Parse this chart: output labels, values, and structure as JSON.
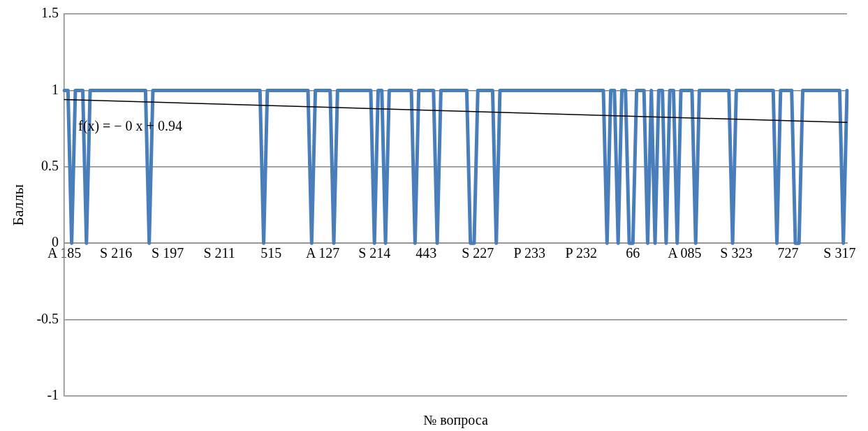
{
  "chart_data": {
    "type": "line",
    "xlabel": "№ вопроса",
    "ylabel": "Баллы",
    "categories": [
      "A 185",
      null,
      null,
      null,
      null,
      null,
      null,
      null,
      null,
      null,
      null,
      null,
      null,
      null,
      "S 216",
      null,
      null,
      null,
      null,
      null,
      null,
      null,
      null,
      null,
      null,
      null,
      null,
      null,
      "S 197",
      null,
      null,
      null,
      null,
      null,
      null,
      null,
      null,
      null,
      null,
      null,
      null,
      null,
      "S 211",
      null,
      null,
      null,
      null,
      null,
      null,
      null,
      null,
      null,
      null,
      null,
      null,
      null,
      "515",
      null,
      null,
      null,
      null,
      null,
      null,
      null,
      null,
      null,
      null,
      null,
      null,
      null,
      "A 127",
      null,
      null,
      null,
      null,
      null,
      null,
      null,
      null,
      null,
      null,
      null,
      null,
      null,
      "S 214",
      null,
      null,
      null,
      null,
      null,
      null,
      null,
      null,
      null,
      null,
      null,
      null,
      null,
      "443",
      null,
      null,
      null,
      null,
      null,
      null,
      null,
      null,
      null,
      null,
      null,
      null,
      null,
      "S 227",
      null,
      null,
      null,
      null,
      null,
      null,
      null,
      null,
      null,
      null,
      null,
      null,
      null,
      "P 233",
      null,
      null,
      null,
      null,
      null,
      null,
      null,
      null,
      null,
      null,
      null,
      null,
      null,
      "P 232",
      null,
      null,
      null,
      null,
      null,
      null,
      null,
      null,
      null,
      null,
      null,
      null,
      null,
      "66",
      null,
      null,
      null,
      null,
      null,
      null,
      null,
      null,
      null,
      null,
      null,
      null,
      null,
      "A 085",
      null,
      null,
      null,
      null,
      null,
      null,
      null,
      null,
      null,
      null,
      null,
      null,
      null,
      "S 323",
      null,
      null,
      null,
      null,
      null,
      null,
      null,
      null,
      null,
      null,
      null,
      null,
      null,
      "727",
      null,
      null,
      null,
      null,
      null,
      null,
      null,
      null,
      null,
      null,
      null,
      null,
      null,
      "S 317",
      null,
      null
    ],
    "series": [
      {
        "color": "#4a7ebb",
        "values": [
          1,
          1,
          0,
          1,
          1,
          1,
          0,
          1,
          1,
          1,
          1,
          1,
          1,
          1,
          1,
          1,
          1,
          1,
          1,
          1,
          1,
          1,
          1,
          0,
          1,
          1,
          1,
          1,
          1,
          1,
          1,
          1,
          1,
          1,
          1,
          1,
          1,
          1,
          1,
          1,
          1,
          1,
          1,
          1,
          1,
          1,
          1,
          1,
          1,
          1,
          1,
          1,
          1,
          1,
          0,
          1,
          1,
          1,
          1,
          1,
          1,
          1,
          1,
          1,
          1,
          1,
          1,
          0,
          1,
          1,
          1,
          1,
          1,
          0,
          1,
          1,
          1,
          1,
          1,
          1,
          1,
          1,
          1,
          1,
          0,
          1,
          1,
          0,
          1,
          1,
          1,
          1,
          1,
          1,
          1,
          0,
          1,
          1,
          1,
          1,
          1,
          0,
          1,
          1,
          1,
          1,
          1,
          1,
          1,
          1,
          0,
          0,
          1,
          1,
          1,
          1,
          1,
          0,
          1,
          1,
          1,
          1,
          1,
          1,
          1,
          1,
          1,
          1,
          1,
          1,
          1,
          1,
          1,
          1,
          1,
          1,
          1,
          1,
          1,
          1,
          1,
          1,
          1,
          1,
          1,
          1,
          1,
          0,
          1,
          1,
          0,
          1,
          1,
          0,
          0,
          1,
          1,
          1,
          0,
          1,
          0,
          1,
          1,
          0,
          1,
          1,
          0,
          1,
          1,
          1,
          1,
          0,
          1,
          1,
          1,
          1,
          1,
          1,
          1,
          1,
          1,
          0,
          1,
          1,
          1,
          1,
          1,
          1,
          1,
          1,
          1,
          1,
          1,
          0,
          1,
          1,
          1,
          1,
          0,
          0,
          1,
          1,
          1,
          1,
          1,
          1,
          1,
          1,
          1,
          1,
          1,
          0,
          1
        ]
      },
      {
        "type": "line",
        "color": "#000000",
        "values": [
          0.94,
          null,
          null,
          null,
          null,
          null,
          null,
          null,
          null,
          null,
          null,
          null,
          null,
          null,
          null,
          null,
          null,
          null,
          null,
          null,
          null,
          null,
          null,
          null,
          null,
          null,
          null,
          null,
          null,
          null,
          null,
          null,
          null,
          null,
          null,
          null,
          null,
          null,
          null,
          null,
          null,
          null,
          null,
          null,
          null,
          null,
          null,
          null,
          null,
          null,
          null,
          null,
          null,
          null,
          null,
          null,
          null,
          null,
          null,
          null,
          null,
          null,
          null,
          null,
          null,
          null,
          null,
          null,
          null,
          null,
          null,
          null,
          null,
          null,
          null,
          null,
          null,
          null,
          null,
          null,
          null,
          null,
          null,
          null,
          null,
          null,
          null,
          null,
          null,
          null,
          null,
          null,
          null,
          null,
          null,
          null,
          null,
          null,
          null,
          null,
          null,
          null,
          null,
          null,
          null,
          null,
          null,
          null,
          null,
          null,
          null,
          null,
          null,
          null,
          null,
          null,
          null,
          null,
          null,
          null,
          null,
          null,
          null,
          null,
          null,
          null,
          null,
          null,
          null,
          null,
          null,
          null,
          null,
          null,
          null,
          null,
          null,
          null,
          null,
          null,
          null,
          null,
          null,
          null,
          null,
          null,
          null,
          null,
          null,
          null,
          null,
          null,
          null,
          null,
          null,
          null,
          null,
          null,
          null,
          null,
          null,
          null,
          null,
          null,
          null,
          null,
          null,
          null,
          null,
          null,
          null,
          null,
          null,
          null,
          null,
          null,
          null,
          null,
          null,
          null,
          null,
          null,
          null,
          null,
          null,
          null,
          null,
          null,
          null,
          null,
          null,
          null,
          null,
          null,
          null,
          null,
          null,
          null,
          null,
          null,
          null,
          null,
          null,
          null,
          null,
          null,
          null,
          null,
          null,
          null,
          null,
          null,
          0.79
        ]
      }
    ],
    "ylim": [
      -1,
      1.5
    ],
    "yticks": [
      -1,
      -0.5,
      0,
      0.5,
      1,
      1.5
    ],
    "grid": "y",
    "marker": "none",
    "annotations": [
      "f(x) = − 0 x + 0.94"
    ]
  }
}
